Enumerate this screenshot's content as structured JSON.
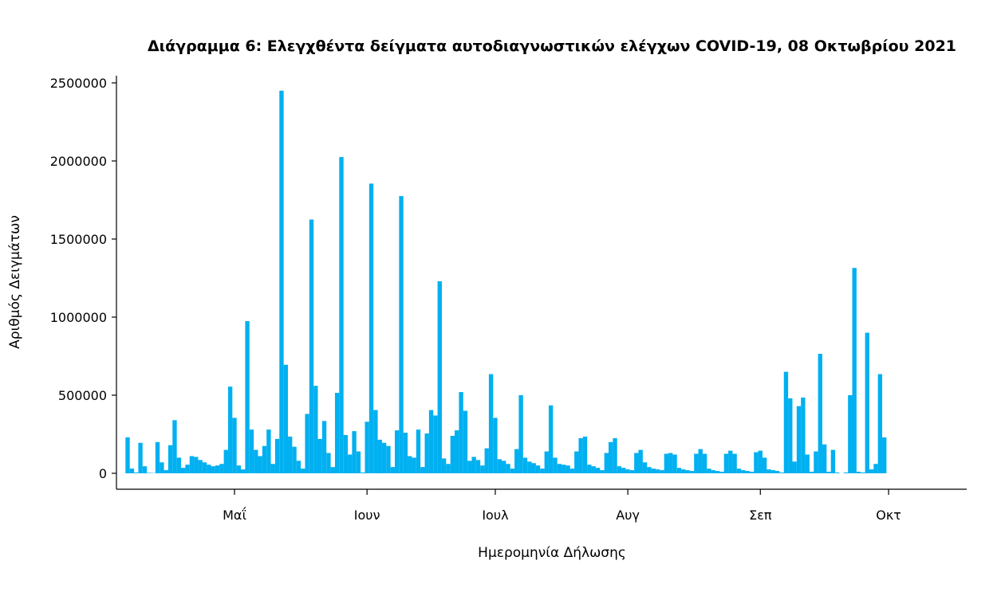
{
  "chart_data": {
    "type": "bar",
    "title": "Διάγραμμα 6: Ελεγχθέντα δείγματα αυτοδιαγνωστικών ελέγχων COVID-19, 08 Οκτωβρίου 2021",
    "xlabel": "Ημερομηνία Δήλωσης",
    "ylabel": "Αριθμός Δειγμάτων",
    "ylim": [
      0,
      2500000
    ],
    "yticks": [
      0,
      500000,
      1000000,
      1500000,
      2000000,
      2500000
    ],
    "ytick_labels": [
      "0",
      "500000",
      "1000000",
      "1500000",
      "2000000",
      "2500000"
    ],
    "x_range": [
      "2021-04-06",
      "2021-10-08"
    ],
    "xticks": [
      {
        "date": "2021-05-01",
        "label": "Μαΐ"
      },
      {
        "date": "2021-06-01",
        "label": "Ιουν"
      },
      {
        "date": "2021-07-01",
        "label": "Ιουλ"
      },
      {
        "date": "2021-08-01",
        "label": "Αυγ"
      },
      {
        "date": "2021-09-01",
        "label": "Σεπ"
      },
      {
        "date": "2021-10-01",
        "label": "Οκτ"
      }
    ],
    "grid": false,
    "legend": "none",
    "color": "#00b0f0",
    "start_date": "2021-04-06",
    "values": [
      230000,
      30000,
      5000,
      195000,
      45000,
      3000,
      2000,
      200000,
      70000,
      20000,
      180000,
      340000,
      100000,
      35000,
      55000,
      110000,
      105000,
      85000,
      70000,
      55000,
      45000,
      50000,
      60000,
      150000,
      555000,
      355000,
      50000,
      25000,
      975000,
      280000,
      150000,
      110000,
      175000,
      280000,
      60000,
      220000,
      2450000,
      695000,
      235000,
      170000,
      80000,
      30000,
      380000,
      1625000,
      560000,
      220000,
      335000,
      130000,
      40000,
      515000,
      2025000,
      245000,
      120000,
      270000,
      140000,
      5000,
      330000,
      1855000,
      405000,
      215000,
      195000,
      175000,
      40000,
      275000,
      1775000,
      260000,
      110000,
      100000,
      280000,
      40000,
      255000,
      405000,
      370000,
      1230000,
      95000,
      60000,
      240000,
      275000,
      520000,
      400000,
      80000,
      105000,
      85000,
      50000,
      160000,
      635000,
      355000,
      90000,
      80000,
      60000,
      30000,
      155000,
      500000,
      100000,
      75000,
      65000,
      50000,
      30000,
      140000,
      435000,
      100000,
      60000,
      55000,
      50000,
      30000,
      140000,
      225000,
      235000,
      55000,
      45000,
      35000,
      20000,
      130000,
      200000,
      225000,
      45000,
      35000,
      25000,
      20000,
      130000,
      150000,
      70000,
      40000,
      30000,
      25000,
      20000,
      125000,
      130000,
      120000,
      35000,
      25000,
      20000,
      15000,
      125000,
      155000,
      125000,
      30000,
      20000,
      15000,
      10000,
      125000,
      145000,
      125000,
      30000,
      20000,
      15000,
      10000,
      135000,
      145000,
      100000,
      25000,
      20000,
      15000,
      5000,
      650000,
      480000,
      75000,
      430000,
      485000,
      120000,
      10000,
      140000,
      765000,
      185000,
      10000,
      150000,
      5000,
      0,
      5000,
      500000,
      1315000,
      10000,
      5000,
      900000,
      25000,
      60000,
      635000,
      230000
    ]
  }
}
